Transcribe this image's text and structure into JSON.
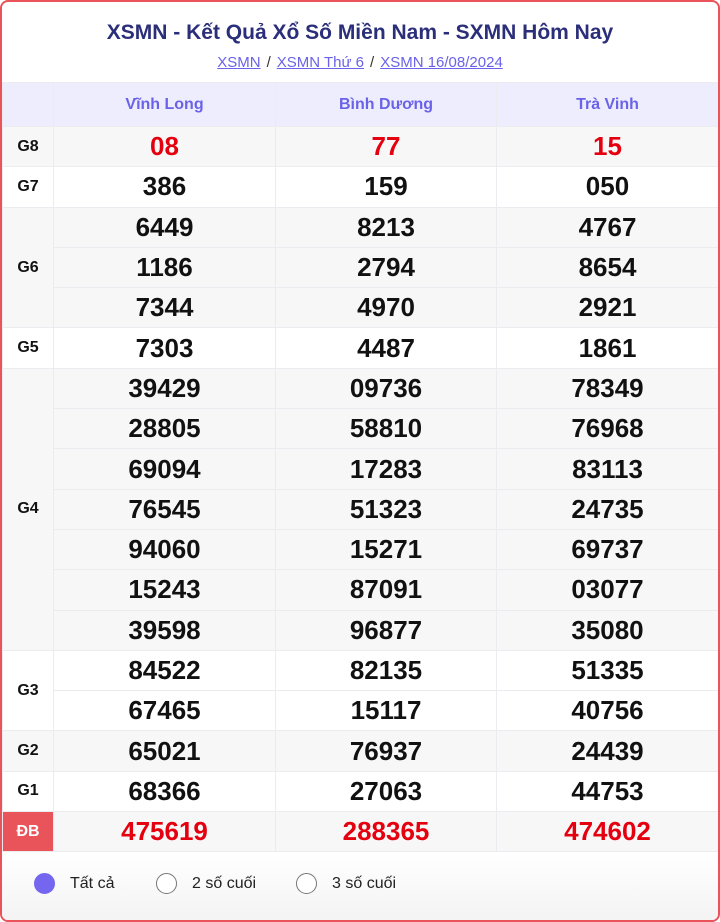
{
  "title": "XSMN - Kết Quả Xổ Số Miền Nam - SXMN Hôm Nay",
  "breadcrumb": [
    "XSMN",
    "XSMN Thứ 6",
    "XSMN 16/08/2024"
  ],
  "provinces": [
    "Vĩnh Long",
    "Bình Dương",
    "Trà Vinh"
  ],
  "prizes": [
    {
      "label": "G8",
      "rows": [
        [
          "08",
          "77",
          "15"
        ]
      ],
      "red": true
    },
    {
      "label": "G7",
      "rows": [
        [
          "386",
          "159",
          "050"
        ]
      ]
    },
    {
      "label": "G6",
      "rows": [
        [
          "6449",
          "8213",
          "4767"
        ],
        [
          "1186",
          "2794",
          "8654"
        ],
        [
          "7344",
          "4970",
          "2921"
        ]
      ]
    },
    {
      "label": "G5",
      "rows": [
        [
          "7303",
          "4487",
          "1861"
        ]
      ]
    },
    {
      "label": "G4",
      "rows": [
        [
          "39429",
          "09736",
          "78349"
        ],
        [
          "28805",
          "58810",
          "76968"
        ],
        [
          "69094",
          "17283",
          "83113"
        ],
        [
          "76545",
          "51323",
          "24735"
        ],
        [
          "94060",
          "15271",
          "69737"
        ],
        [
          "15243",
          "87091",
          "03077"
        ],
        [
          "39598",
          "96877",
          "35080"
        ]
      ]
    },
    {
      "label": "G3",
      "rows": [
        [
          "84522",
          "82135",
          "51335"
        ],
        [
          "67465",
          "15117",
          "40756"
        ]
      ]
    },
    {
      "label": "G2",
      "rows": [
        [
          "65021",
          "76937",
          "24439"
        ]
      ]
    },
    {
      "label": "G1",
      "rows": [
        [
          "68366",
          "27063",
          "44753"
        ]
      ]
    },
    {
      "label": "ĐB",
      "rows": [
        [
          "475619",
          "288365",
          "474602"
        ]
      ],
      "red": true,
      "special": true
    }
  ],
  "filters": {
    "options": [
      "Tất cả",
      "2 số cuối",
      "3 số cuối"
    ],
    "selected": "Tất cả"
  },
  "colors": {
    "accent": "#6a62e8",
    "red": "#e4000f",
    "special_bg": "#e9545b",
    "title": "#2b2f7a"
  }
}
